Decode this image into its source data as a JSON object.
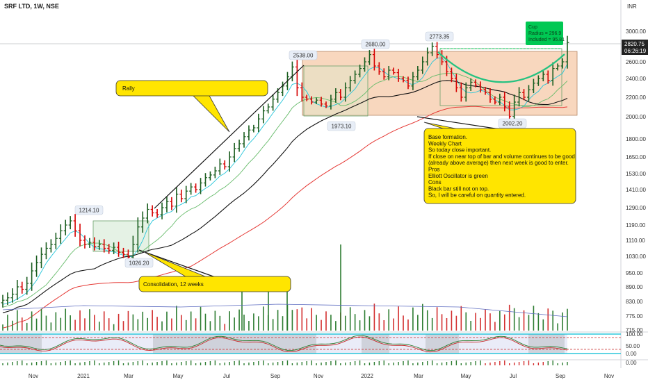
{
  "chart_data": {
    "type": "candlestick",
    "title": "SRF LTD, 1W, NSE",
    "currency": "INR",
    "last_price": "2820.75",
    "countdown": "06:26:19",
    "price_ticks": [
      "3000.00",
      "2800.00",
      "2600.00",
      "2400.00",
      "2200.00",
      "2000.00",
      "1800.00",
      "1650.00",
      "1530.00",
      "1410.00",
      "1290.00",
      "1190.00",
      "1110.00",
      "1030.00",
      "950.00",
      "890.00",
      "830.00",
      "775.00",
      "715.00"
    ],
    "osc_ticks": [
      "100.00",
      "50.00",
      "0.00"
    ],
    "x_ticks": [
      "Nov",
      "2021",
      "Mar",
      "May",
      "Jul",
      "Sep",
      "Nov",
      "2022",
      "Mar",
      "May",
      "Jul",
      "Sep",
      "Nov"
    ],
    "price_labels": [
      "1214.10",
      "1026.20",
      "2538.00",
      "2680.00",
      "2773.35",
      "1973.10",
      "2002.20"
    ],
    "callouts": {
      "rally": "Rally",
      "consolidation": "Consolidation, 12 weeks",
      "notes": [
        "Base formation.",
        "Weekly Chart",
        "So today close important.",
        "If close on near top of bar and volume continues to be good",
        "(already above average) then next week is good to enter.",
        "Pros",
        "Elliott Oscillator is green",
        "Cons",
        "Black bar still not on top.",
        "So, I will be careful on quantity entered."
      ]
    },
    "cup_indicator": {
      "lines": [
        "Cup",
        "Radius = 296.9",
        "Included = 95.81"
      ],
      "color": "#00c853"
    },
    "weekly_closes": [
      835,
      845,
      860,
      890,
      880,
      905,
      960,
      1000,
      1040,
      1070,
      1090,
      1120,
      1160,
      1190,
      1214,
      1160,
      1110,
      1090,
      1100,
      1080,
      1090,
      1070,
      1060,
      1075,
      1050,
      1040,
      1026,
      1090,
      1180,
      1230,
      1280,
      1260,
      1250,
      1290,
      1330,
      1300,
      1380,
      1350,
      1400,
      1430,
      1410,
      1460,
      1500,
      1520,
      1550,
      1600,
      1580,
      1650,
      1720,
      1760,
      1820,
      1880,
      1900,
      1980,
      2060,
      2100,
      2180,
      2250,
      2320,
      2420,
      2538,
      2300,
      2200,
      2180,
      2150,
      2170,
      2130,
      2110,
      2180,
      2250,
      2200,
      2300,
      2380,
      2450,
      2520,
      2600,
      2680,
      2550,
      2480,
      2420,
      2500,
      2470,
      2400,
      2380,
      2320,
      2420,
      2500,
      2600,
      2700,
      2773,
      2680,
      2600,
      2480,
      2400,
      2300,
      2200,
      2300,
      2360,
      2330,
      2280,
      2250,
      2180,
      2150,
      2200,
      2100,
      2002,
      2150,
      2250,
      2200,
      2280,
      2350,
      2400,
      2450,
      2380,
      2520,
      2550,
      2600,
      2820
    ]
  }
}
